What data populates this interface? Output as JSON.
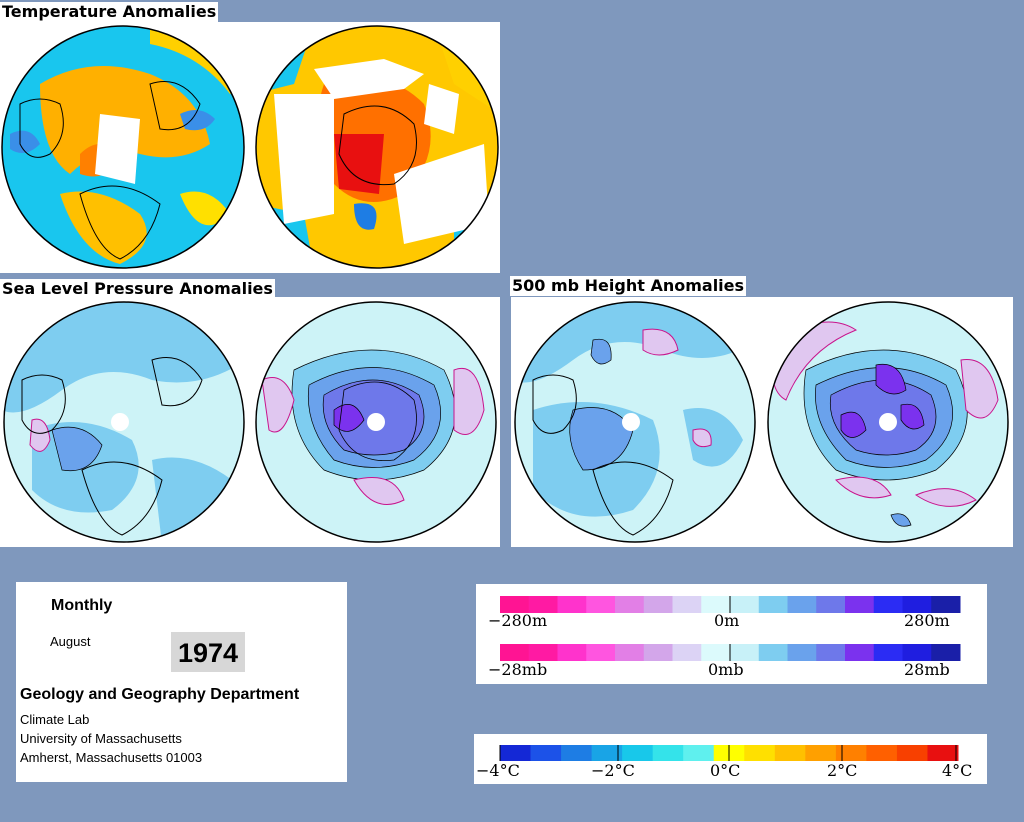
{
  "sections": {
    "temperature_title": "Temperature Anomalies",
    "slp_title": "Sea Level Pressure Anomalies",
    "height_title": "500 mb Height Anomalies"
  },
  "info": {
    "period_type": "Monthly",
    "month": "August",
    "year": "1974",
    "department": "Geology and Geography Department",
    "lab": "Climate Lab",
    "university": "University of Massachusetts",
    "address": "Amherst, Massachusetts 01003"
  },
  "legends": {
    "height": {
      "min": "−280m",
      "mid": "0m",
      "max": "280m"
    },
    "pressure": {
      "min": "−28mb",
      "mid": "0mb",
      "max": "28mb"
    },
    "temperature": {
      "t1": "−4°C",
      "t2": "−2°C",
      "t3": "0°C",
      "t4": "2°C",
      "t5": "4°C"
    }
  },
  "colors": {
    "background": "#7f98bd",
    "ocean_neutral": "#cdf3f7",
    "pressure_scale": [
      "#ff1493",
      "#ff1aa3",
      "#ff33cc",
      "#ff55e0",
      "#e27fe6",
      "#d3a6ea",
      "#dcd3f5",
      "#dcfafc",
      "#c8f1f8",
      "#7ecdf0",
      "#6aa2ec",
      "#6e78ea",
      "#7b32ee",
      "#2b2cf4",
      "#1f1ee0",
      "#1a1fa8"
    ],
    "temperature_scale": [
      "#1428d6",
      "#1c52e8",
      "#1e7de4",
      "#19a4e6",
      "#18c8ea",
      "#34e3ea",
      "#5ff0ee",
      "#ffff00",
      "#ffe000",
      "#ffc000",
      "#ffa000",
      "#ff8000",
      "#ff6000",
      "#f84000",
      "#e81010"
    ]
  }
}
